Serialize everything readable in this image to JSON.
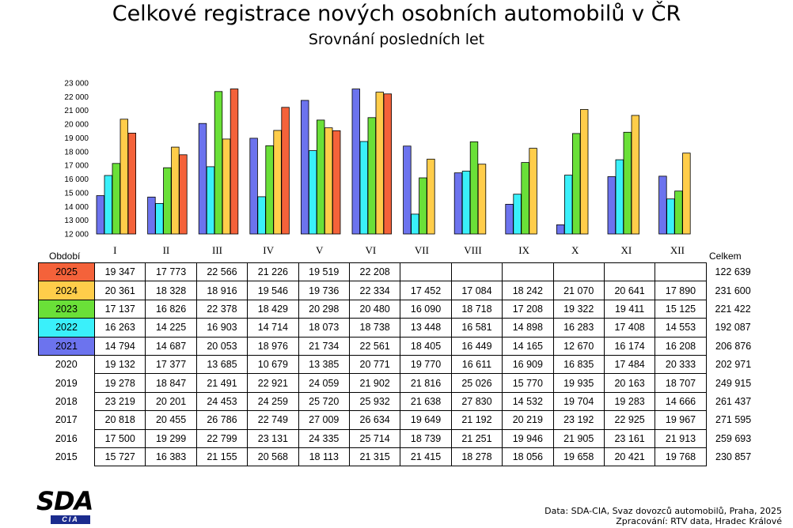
{
  "title": "Celkové registrace nových osobních automobilů v ČR",
  "subtitle": "Srovnání posledních let",
  "table": {
    "period_header": "Období",
    "total_header": "Celkem"
  },
  "source_line1": "Data: SDA-CIA, Svaz dovozců automobilů, Praha, 2025",
  "source_line2": "Zpracování: RTV data, Hradec Králové",
  "logo": {
    "text": "SDA",
    "sub": "CIA"
  },
  "chart_data": {
    "type": "bar",
    "categories": [
      "I",
      "II",
      "III",
      "IV",
      "V",
      "VI",
      "VII",
      "VIII",
      "IX",
      "X",
      "XI",
      "XII"
    ],
    "ylim": [
      12000,
      23000
    ],
    "yticks": [
      "12 000",
      "13 000",
      "14 000",
      "15 000",
      "16 000",
      "17 000",
      "18 000",
      "19 000",
      "20 000",
      "21 000",
      "22 000",
      "23 000"
    ],
    "chart_series_order": [
      "2021",
      "2022",
      "2023",
      "2024",
      "2025"
    ],
    "series": [
      {
        "name": "2025",
        "color": "#f4623a",
        "values": [
          19347,
          17773,
          22566,
          21226,
          19519,
          22208,
          null,
          null,
          null,
          null,
          null,
          null
        ],
        "values_text": [
          "19 347",
          "17 773",
          "22 566",
          "21 226",
          "19 519",
          "22 208",
          "",
          "",
          "",
          "",
          "",
          ""
        ],
        "total": "122 639"
      },
      {
        "name": "2024",
        "color": "#ffcd4a",
        "values": [
          20361,
          18328,
          18916,
          19546,
          19736,
          22334,
          17452,
          17084,
          18242,
          21070,
          20641,
          17890
        ],
        "values_text": [
          "20 361",
          "18 328",
          "18 916",
          "19 546",
          "19 736",
          "22 334",
          "17 452",
          "17 084",
          "18 242",
          "21 070",
          "20 641",
          "17 890"
        ],
        "total": "231 600"
      },
      {
        "name": "2023",
        "color": "#6ae038",
        "values": [
          17137,
          16826,
          22378,
          18429,
          20298,
          20480,
          16090,
          18718,
          17208,
          19322,
          19411,
          15125
        ],
        "values_text": [
          "17 137",
          "16 826",
          "22 378",
          "18 429",
          "20 298",
          "20 480",
          "16 090",
          "18 718",
          "17 208",
          "19 322",
          "19 411",
          "15 125"
        ],
        "total": "221 422"
      },
      {
        "name": "2022",
        "color": "#3af0fa",
        "values": [
          16263,
          14225,
          16903,
          14714,
          18073,
          18738,
          13448,
          16581,
          14898,
          16283,
          17408,
          14553
        ],
        "values_text": [
          "16 263",
          "14 225",
          "16 903",
          "14 714",
          "18 073",
          "18 738",
          "13 448",
          "16 581",
          "14 898",
          "16 283",
          "17 408",
          "14 553"
        ],
        "total": "192 087"
      },
      {
        "name": "2021",
        "color": "#6c73ee",
        "values": [
          14794,
          14687,
          20053,
          18976,
          21734,
          22561,
          18405,
          16449,
          14165,
          12670,
          16174,
          16208
        ],
        "values_text": [
          "14 794",
          "14 687",
          "20 053",
          "18 976",
          "21 734",
          "22 561",
          "18 405",
          "16 449",
          "14 165",
          "12 670",
          "16 174",
          "16 208"
        ],
        "total": "206 876"
      },
      {
        "name": "2020",
        "values": [
          19132,
          17377,
          13685,
          10679,
          13385,
          20771,
          19770,
          16611,
          16909,
          16835,
          17484,
          20333
        ],
        "values_text": [
          "19 132",
          "17 377",
          "13 685",
          "10 679",
          "13 385",
          "20 771",
          "19 770",
          "16 611",
          "16 909",
          "16 835",
          "17 484",
          "20 333"
        ],
        "total": "202 971"
      },
      {
        "name": "2019",
        "values": [
          19278,
          18847,
          21491,
          22921,
          24059,
          21902,
          21816,
          25026,
          15770,
          19935,
          20163,
          18707
        ],
        "values_text": [
          "19 278",
          "18 847",
          "21 491",
          "22 921",
          "24 059",
          "21 902",
          "21 816",
          "25 026",
          "15 770",
          "19 935",
          "20 163",
          "18 707"
        ],
        "total": "249 915"
      },
      {
        "name": "2018",
        "values": [
          23219,
          20201,
          24453,
          24259,
          25720,
          25932,
          21638,
          27830,
          14532,
          19704,
          19283,
          14666
        ],
        "values_text": [
          "23 219",
          "20 201",
          "24 453",
          "24 259",
          "25 720",
          "25 932",
          "21 638",
          "27 830",
          "14 532",
          "19 704",
          "19 283",
          "14 666"
        ],
        "total": "261 437"
      },
      {
        "name": "2017",
        "values": [
          20818,
          20455,
          26786,
          22749,
          27009,
          26634,
          19649,
          21192,
          20219,
          23192,
          22925,
          19967
        ],
        "values_text": [
          "20 818",
          "20 455",
          "26 786",
          "22 749",
          "27 009",
          "26 634",
          "19 649",
          "21 192",
          "20 219",
          "23 192",
          "22 925",
          "19 967"
        ],
        "total": "271 595"
      },
      {
        "name": "2016",
        "values": [
          17500,
          19299,
          22799,
          23131,
          24335,
          25714,
          18739,
          21251,
          19946,
          21905,
          23161,
          21913
        ],
        "values_text": [
          "17 500",
          "19 299",
          "22 799",
          "23 131",
          "24 335",
          "25 714",
          "18 739",
          "21 251",
          "19 946",
          "21 905",
          "23 161",
          "21 913"
        ],
        "total": "259 693"
      },
      {
        "name": "2015",
        "values": [
          15727,
          16383,
          21155,
          20568,
          18113,
          21315,
          21415,
          18278,
          18056,
          19658,
          20421,
          19768
        ],
        "values_text": [
          "15 727",
          "16 383",
          "21 155",
          "20 568",
          "18 113",
          "21 315",
          "21 415",
          "18 278",
          "18 056",
          "19 658",
          "20 421",
          "19 768"
        ],
        "total": "230 857"
      }
    ]
  }
}
